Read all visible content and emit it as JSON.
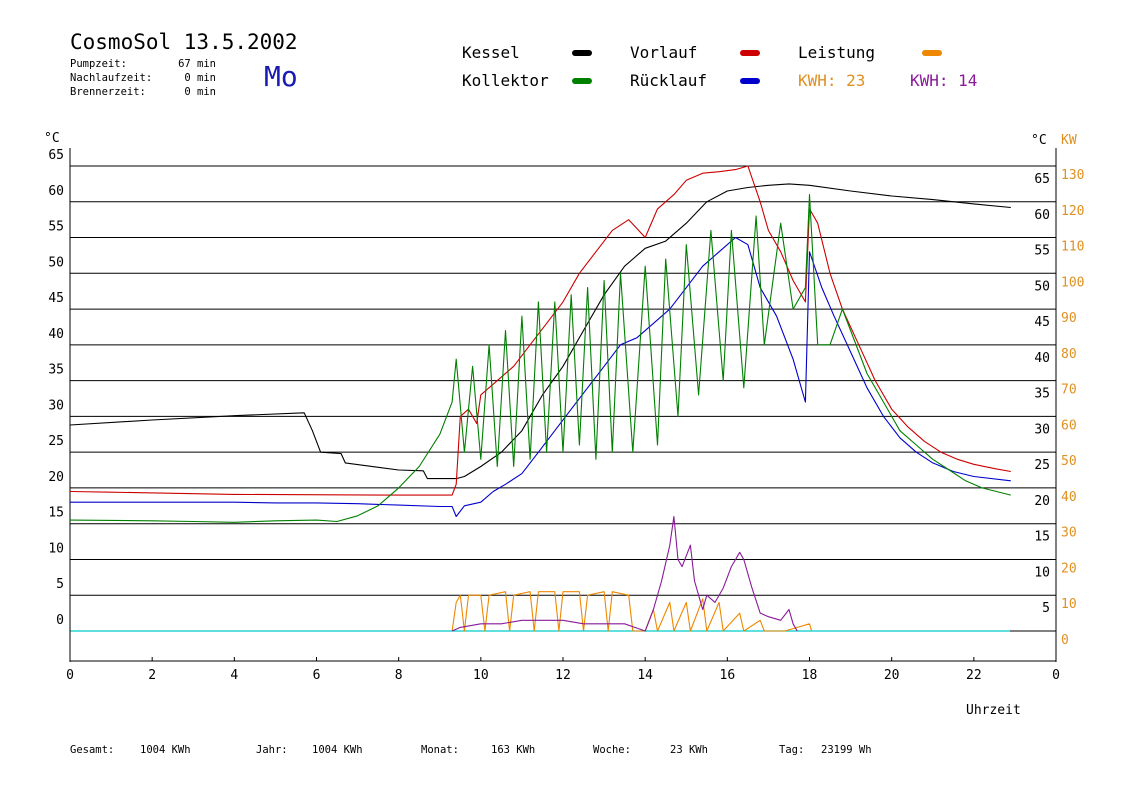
{
  "header": {
    "title": "CosmoSol 13.5.2002",
    "day": "Mo",
    "info": [
      {
        "label": "Pumpzeit:",
        "value": "67 min"
      },
      {
        "label": "Nachlaufzeit:",
        "value": "0 min"
      },
      {
        "label": "Brennerzeit:",
        "value": "0 min"
      }
    ]
  },
  "legend": {
    "kessel": {
      "label": "Kessel",
      "color": "#000000"
    },
    "vorlauf": {
      "label": "Vorlauf",
      "color": "#cc0000"
    },
    "leistung": {
      "label": "Leistung",
      "color": "#ee8800"
    },
    "kollektor": {
      "label": "Kollektor",
      "color": "#008000"
    },
    "ruecklauf": {
      "label": "Rücklauf",
      "color": "#0000cc"
    },
    "kwh1": {
      "label": "KWH: 23",
      "color": "#e09020"
    },
    "kwh2": {
      "label": "KWH: 14",
      "color": "#8a1a9a"
    }
  },
  "footer": [
    {
      "label": "Gesamt:",
      "value": "1004 KWh"
    },
    {
      "label": "Jahr:",
      "value": "1004 KWh"
    },
    {
      "label": "Monat:",
      "value": "163 KWh"
    },
    {
      "label": "Woche:",
      "value": "23 KWh"
    },
    {
      "label": "Tag:",
      "value": "23199 Wh"
    }
  ],
  "chart_data": {
    "type": "line",
    "y_left_unit": "°C",
    "y_right_unit": "°C",
    "y_right2_unit": "KW",
    "xlabel": "Uhrzeit",
    "xlim": [
      0,
      24
    ],
    "ylim": [
      0,
      65
    ],
    "y2lim": [
      0,
      130
    ],
    "x_ticks": [
      "0",
      "2",
      "4",
      "6",
      "8",
      "10",
      "12",
      "14",
      "16",
      "18",
      "20",
      "22",
      "0"
    ],
    "y_ticks": [
      0,
      5,
      10,
      15,
      20,
      25,
      30,
      35,
      40,
      45,
      50,
      55,
      60,
      65
    ],
    "y2_ticks": [
      0,
      10,
      20,
      30,
      40,
      50,
      60,
      70,
      80,
      90,
      100,
      110,
      120,
      130
    ],
    "grid": "horizontal",
    "baseline_color": "#00cccc",
    "series": [
      {
        "name": "Kessel",
        "color": "#000000",
        "points": [
          [
            0,
            28.8
          ],
          [
            2,
            29.5
          ],
          [
            4,
            30.1
          ],
          [
            5.7,
            30.5
          ],
          [
            5.9,
            28
          ],
          [
            6.1,
            25
          ],
          [
            6.6,
            24.8
          ],
          [
            6.7,
            23.5
          ],
          [
            8,
            22.5
          ],
          [
            8.6,
            22.4
          ],
          [
            8.7,
            21.3
          ],
          [
            9.4,
            21.3
          ],
          [
            9.6,
            21.6
          ],
          [
            10,
            23
          ],
          [
            10.5,
            25
          ],
          [
            11,
            28
          ],
          [
            11.5,
            33
          ],
          [
            12,
            37
          ],
          [
            12.5,
            42
          ],
          [
            13,
            47
          ],
          [
            13.5,
            51
          ],
          [
            14,
            53.5
          ],
          [
            14.5,
            54.5
          ],
          [
            15,
            57
          ],
          [
            15.5,
            60
          ],
          [
            16,
            61.5
          ],
          [
            16.5,
            62
          ],
          [
            17,
            62.3
          ],
          [
            17.5,
            62.5
          ],
          [
            18,
            62.3
          ],
          [
            19,
            61.5
          ],
          [
            20,
            60.8
          ],
          [
            21,
            60.3
          ],
          [
            22,
            59.7
          ],
          [
            22.9,
            59.2
          ]
        ]
      },
      {
        "name": "Vorlauf",
        "color": "#cc0000",
        "points": [
          [
            0,
            19.5
          ],
          [
            1,
            19.4
          ],
          [
            4,
            19.1
          ],
          [
            8,
            19
          ],
          [
            9.3,
            19
          ],
          [
            9.4,
            20.5
          ],
          [
            9.5,
            30
          ],
          [
            9.7,
            31
          ],
          [
            9.9,
            29
          ],
          [
            10,
            33
          ],
          [
            10.4,
            35
          ],
          [
            10.8,
            37
          ],
          [
            11.2,
            40
          ],
          [
            11.6,
            43
          ],
          [
            12,
            46
          ],
          [
            12.4,
            50
          ],
          [
            12.8,
            53
          ],
          [
            13.2,
            56
          ],
          [
            13.6,
            57.5
          ],
          [
            14,
            55
          ],
          [
            14.3,
            59
          ],
          [
            14.7,
            61
          ],
          [
            15,
            63
          ],
          [
            15.4,
            64
          ],
          [
            15.8,
            64.2
          ],
          [
            16.2,
            64.5
          ],
          [
            16.5,
            65
          ],
          [
            16.8,
            60
          ],
          [
            17,
            56
          ],
          [
            17.3,
            53
          ],
          [
            17.6,
            49
          ],
          [
            17.9,
            46
          ],
          [
            18,
            59
          ],
          [
            18.2,
            57
          ],
          [
            18.5,
            50
          ],
          [
            18.8,
            45
          ],
          [
            19.2,
            40
          ],
          [
            19.6,
            35
          ],
          [
            20,
            31
          ],
          [
            20.4,
            28.5
          ],
          [
            20.8,
            26.5
          ],
          [
            21.2,
            25
          ],
          [
            21.6,
            24
          ],
          [
            22,
            23.3
          ],
          [
            22.5,
            22.7
          ],
          [
            22.9,
            22.3
          ]
        ]
      },
      {
        "name": "Rücklauf",
        "color": "#0000cc",
        "points": [
          [
            0,
            18
          ],
          [
            2,
            18
          ],
          [
            4,
            18
          ],
          [
            5,
            17.9
          ],
          [
            6,
            17.9
          ],
          [
            7,
            17.8
          ],
          [
            8,
            17.6
          ],
          [
            9,
            17.4
          ],
          [
            9.3,
            17.4
          ],
          [
            9.4,
            16
          ],
          [
            9.6,
            17.5
          ],
          [
            10,
            18
          ],
          [
            10.3,
            19.5
          ],
          [
            10.6,
            20.5
          ],
          [
            11,
            22
          ],
          [
            11.4,
            25
          ],
          [
            11.8,
            28
          ],
          [
            12.2,
            31
          ],
          [
            12.6,
            34
          ],
          [
            13,
            37
          ],
          [
            13.4,
            40
          ],
          [
            13.8,
            41
          ],
          [
            14.2,
            43
          ],
          [
            14.6,
            45
          ],
          [
            15,
            48
          ],
          [
            15.4,
            51
          ],
          [
            15.8,
            53
          ],
          [
            16.2,
            55
          ],
          [
            16.5,
            54
          ],
          [
            16.8,
            48
          ],
          [
            17.2,
            44
          ],
          [
            17.6,
            38
          ],
          [
            17.9,
            32
          ],
          [
            18,
            53
          ],
          [
            18.3,
            48
          ],
          [
            18.6,
            44
          ],
          [
            19,
            39
          ],
          [
            19.4,
            34
          ],
          [
            19.8,
            30
          ],
          [
            20.2,
            27
          ],
          [
            20.6,
            25
          ],
          [
            21,
            23.5
          ],
          [
            21.5,
            22.3
          ],
          [
            22,
            21.6
          ],
          [
            22.9,
            21
          ]
        ]
      },
      {
        "name": "Kollektor",
        "color": "#008000",
        "points": [
          [
            0,
            15.5
          ],
          [
            2,
            15.4
          ],
          [
            3,
            15.3
          ],
          [
            4,
            15.2
          ],
          [
            5,
            15.4
          ],
          [
            6,
            15.5
          ],
          [
            6.5,
            15.3
          ],
          [
            7,
            16.1
          ],
          [
            7.5,
            17.5
          ],
          [
            8,
            20
          ],
          [
            8.5,
            23
          ],
          [
            9,
            27.5
          ],
          [
            9.3,
            32
          ],
          [
            9.4,
            38
          ],
          [
            9.6,
            25
          ],
          [
            9.8,
            37
          ],
          [
            10,
            24
          ],
          [
            10.2,
            40
          ],
          [
            10.4,
            23
          ],
          [
            10.6,
            42
          ],
          [
            10.8,
            23
          ],
          [
            11,
            44
          ],
          [
            11.2,
            24
          ],
          [
            11.4,
            46
          ],
          [
            11.6,
            25
          ],
          [
            11.8,
            46
          ],
          [
            12,
            25
          ],
          [
            12.2,
            47
          ],
          [
            12.4,
            26
          ],
          [
            12.6,
            48
          ],
          [
            12.8,
            24
          ],
          [
            13,
            49
          ],
          [
            13.2,
            25
          ],
          [
            13.4,
            50
          ],
          [
            13.7,
            25
          ],
          [
            14,
            51
          ],
          [
            14.3,
            26
          ],
          [
            14.5,
            52
          ],
          [
            14.8,
            30
          ],
          [
            15,
            54
          ],
          [
            15.3,
            33
          ],
          [
            15.6,
            56
          ],
          [
            15.9,
            35
          ],
          [
            16.1,
            56
          ],
          [
            16.4,
            34
          ],
          [
            16.7,
            58
          ],
          [
            16.9,
            40
          ],
          [
            17.3,
            57
          ],
          [
            17.6,
            45
          ],
          [
            17.9,
            48
          ],
          [
            18,
            61
          ],
          [
            18.2,
            40
          ],
          [
            18.5,
            40
          ],
          [
            18.8,
            45
          ],
          [
            19,
            42
          ],
          [
            19.4,
            36
          ],
          [
            19.8,
            32
          ],
          [
            20.2,
            28
          ],
          [
            20.6,
            26
          ],
          [
            21,
            24
          ],
          [
            21.4,
            22.5
          ],
          [
            21.8,
            21
          ],
          [
            22.2,
            20
          ],
          [
            22.9,
            19
          ]
        ]
      },
      {
        "name": "Leistung",
        "color": "#ee8800",
        "axis": "right",
        "points": [
          [
            9.3,
            0
          ],
          [
            9.4,
            8
          ],
          [
            9.5,
            10
          ],
          [
            9.6,
            0
          ],
          [
            9.7,
            10
          ],
          [
            10,
            10
          ],
          [
            10.1,
            0
          ],
          [
            10.2,
            10
          ],
          [
            10.6,
            11
          ],
          [
            10.7,
            0
          ],
          [
            10.8,
            10
          ],
          [
            11.2,
            11
          ],
          [
            11.3,
            0
          ],
          [
            11.4,
            11
          ],
          [
            11.8,
            11
          ],
          [
            11.9,
            0
          ],
          [
            12,
            11
          ],
          [
            12.4,
            11
          ],
          [
            12.5,
            0
          ],
          [
            12.6,
            10
          ],
          [
            13,
            11
          ],
          [
            13.1,
            0
          ],
          [
            13.2,
            11
          ],
          [
            13.6,
            10
          ],
          [
            13.7,
            0
          ],
          [
            14,
            0
          ],
          [
            14.2,
            6
          ],
          [
            14.3,
            0
          ],
          [
            14.6,
            8
          ],
          [
            14.7,
            0
          ],
          [
            15,
            8
          ],
          [
            15.1,
            0
          ],
          [
            15.4,
            9
          ],
          [
            15.5,
            0
          ],
          [
            15.8,
            8
          ],
          [
            15.9,
            0
          ],
          [
            16.3,
            5
          ],
          [
            16.4,
            0
          ],
          [
            16.8,
            3
          ],
          [
            16.9,
            0
          ],
          [
            17.4,
            0
          ],
          [
            18,
            2
          ],
          [
            18.05,
            0
          ]
        ]
      },
      {
        "name": "KWH: 14",
        "color": "#8a1a9a",
        "axis": "right",
        "points": [
          [
            9.3,
            0
          ],
          [
            9.5,
            1
          ],
          [
            10,
            2
          ],
          [
            10.5,
            2
          ],
          [
            11,
            3
          ],
          [
            11.5,
            3
          ],
          [
            12,
            3
          ],
          [
            12.5,
            2
          ],
          [
            13,
            2
          ],
          [
            13.5,
            2
          ],
          [
            14,
            0
          ],
          [
            14.2,
            6
          ],
          [
            14.4,
            14
          ],
          [
            14.6,
            24
          ],
          [
            14.7,
            32
          ],
          [
            14.8,
            20
          ],
          [
            14.9,
            18
          ],
          [
            15.1,
            24
          ],
          [
            15.2,
            14
          ],
          [
            15.4,
            6
          ],
          [
            15.5,
            10
          ],
          [
            15.7,
            8
          ],
          [
            15.9,
            12
          ],
          [
            16.1,
            18
          ],
          [
            16.3,
            22
          ],
          [
            16.4,
            20
          ],
          [
            16.6,
            12
          ],
          [
            16.8,
            5
          ],
          [
            17,
            4
          ],
          [
            17.3,
            3
          ],
          [
            17.5,
            6
          ],
          [
            17.6,
            2
          ],
          [
            17.7,
            0
          ]
        ]
      }
    ]
  }
}
